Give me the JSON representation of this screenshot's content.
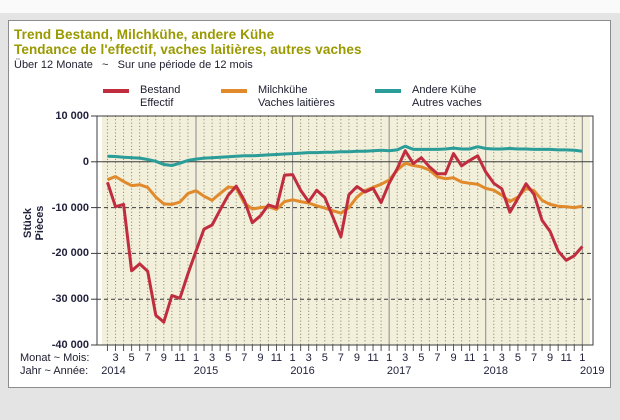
{
  "header": {
    "title_de": "Trend Bestand, Milchkühe, andere Kühe",
    "title_fr": "Tendance de l'effectif, vaches laitières, autres vaches",
    "subtitle": "Über 12 Monate   ~   Sur une période de 12 mois"
  },
  "legend": {
    "items": [
      {
        "line1": "Bestand",
        "line2": "Effectif",
        "color": "#bf2d3e"
      },
      {
        "line1": "Milchkühe",
        "line2": "Vaches laitières",
        "color": "#e08a2c"
      },
      {
        "line1": "Andere Kühe",
        "line2": "Autres vaches",
        "color": "#2a9d99"
      }
    ]
  },
  "axes": {
    "y_unit_line1": "Stück",
    "y_unit_line2": "Pièces",
    "month_row_label": "Monat ~ Mois:",
    "year_row_label": "Jahr ~ Année:"
  },
  "chart_data": {
    "type": "line",
    "title": "Trend Bestand, Milchkühe, andere Kühe ~ Tendance de l'effectif, vaches laitières, autres vaches (Über 12 Monate ~ Sur une période de 12 mois)",
    "xlabel": "Monat/Jahr ~ Mois/Année",
    "ylabel": "Stück ~ Pièces",
    "x_start": "2014-02",
    "x_end": "2019-01",
    "x_step": "month",
    "ylim": [
      -40000,
      10000
    ],
    "grid": {
      "vertical_minor": "dotted line each month",
      "vertical_major": "solid gray line each January",
      "horizontal": "dashed at -10000/-20000/-30000, solid at 0",
      "plot_background": "#f2efdb"
    },
    "legend_position": "top",
    "y_ticks": [
      {
        "label": "10 000",
        "value": 10000
      },
      {
        "label": "0",
        "value": 0
      },
      {
        "label": "-10 000",
        "value": -10000
      },
      {
        "label": "-20 000",
        "value": -20000
      },
      {
        "label": "-30 000",
        "value": -30000
      },
      {
        "label": "-40 000",
        "value": -40000
      }
    ],
    "month_tick_labels": [
      "3",
      "5",
      "7",
      "9",
      "11",
      "1",
      "3",
      "5",
      "7",
      "9",
      "11",
      "1",
      "3",
      "5",
      "7",
      "9",
      "11",
      "1",
      "3",
      "5",
      "7",
      "9",
      "11",
      "1",
      "3",
      "5",
      "7",
      "9",
      "11",
      "1"
    ],
    "year_labels": [
      "2014",
      "2015",
      "2016",
      "2017",
      "2018",
      "2019"
    ],
    "series": [
      {
        "name": "Bestand ~ Effectif",
        "color": "#bf2d3e",
        "values": [
          -4500,
          -9800,
          -9300,
          -23800,
          -22300,
          -23900,
          -33500,
          -35000,
          -29200,
          -29800,
          -24400,
          -19500,
          -14700,
          -13800,
          -10500,
          -7300,
          -5300,
          -8400,
          -13300,
          -11800,
          -9400,
          -10000,
          -2900,
          -2800,
          -6200,
          -8700,
          -6200,
          -7800,
          -12000,
          -16400,
          -7200,
          -5400,
          -6600,
          -5800,
          -8900,
          -4700,
          -1500,
          2400,
          -400,
          900,
          -1100,
          -2600,
          -2600,
          1800,
          -900,
          300,
          1300,
          -2200,
          -4700,
          -5900,
          -11000,
          -8000,
          -4800,
          -7100,
          -12800,
          -15200,
          -19500,
          -21500,
          -20500,
          -18500
        ]
      },
      {
        "name": "Milchkühe ~ Vaches laitières",
        "color": "#e08a2c",
        "values": [
          -3900,
          -3200,
          -4300,
          -5200,
          -5000,
          -5600,
          -7700,
          -9200,
          -9300,
          -8800,
          -6900,
          -6300,
          -7500,
          -8400,
          -6900,
          -5500,
          -5700,
          -9000,
          -10300,
          -10000,
          -9800,
          -10400,
          -8700,
          -8300,
          -8700,
          -9000,
          -9600,
          -10100,
          -10700,
          -11200,
          -10000,
          -7700,
          -6300,
          -5600,
          -4900,
          -4000,
          -1800,
          -300,
          -800,
          -1100,
          -1800,
          -3300,
          -3700,
          -3500,
          -4400,
          -4700,
          -4900,
          -5800,
          -6200,
          -7300,
          -8700,
          -7700,
          -5800,
          -6300,
          -8400,
          -9300,
          -9700,
          -9800,
          -10000,
          -9700
        ]
      },
      {
        "name": "Andere Kühe ~ Autres vaches",
        "color": "#2a9d99",
        "values": [
          1200,
          1150,
          1000,
          900,
          800,
          500,
          100,
          -600,
          -800,
          -300,
          300,
          600,
          800,
          900,
          1000,
          1100,
          1200,
          1300,
          1300,
          1400,
          1500,
          1600,
          1700,
          1800,
          1900,
          2000,
          2000,
          2100,
          2100,
          2200,
          2200,
          2300,
          2300,
          2400,
          2500,
          2400,
          2600,
          3400,
          2700,
          2700,
          2700,
          2700,
          2800,
          3000,
          2800,
          2800,
          3300,
          2900,
          2800,
          2800,
          2900,
          2800,
          2800,
          2700,
          2700,
          2700,
          2600,
          2600,
          2500,
          2300
        ]
      }
    ]
  }
}
